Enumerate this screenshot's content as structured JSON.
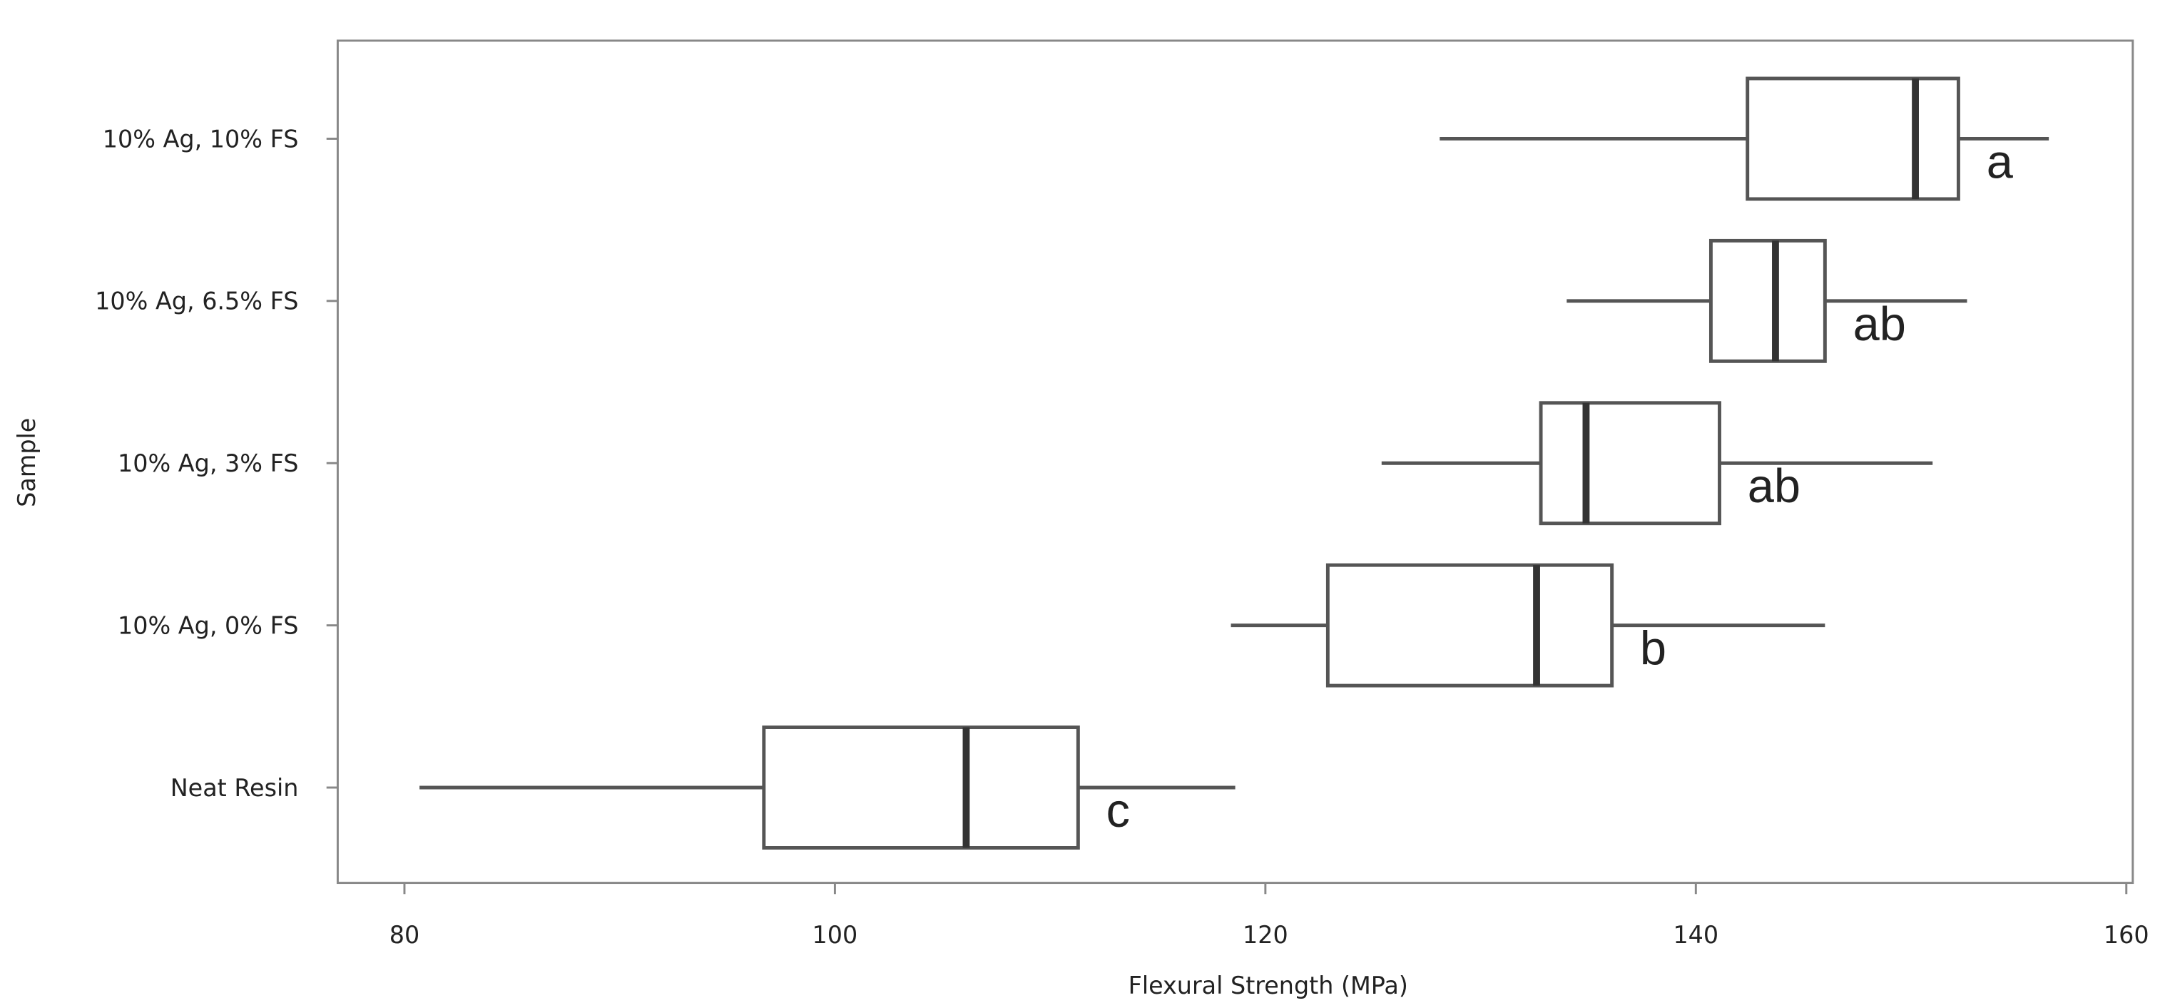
{
  "chart_data": {
    "type": "boxplot",
    "orientation": "horizontal",
    "x_label": "Flexural Strength (MPa)",
    "y_label": "Sample",
    "categories": [
      "10% Ag, 10% FS",
      "10% Ag, 6.5% FS",
      "10% Ag, 3% FS",
      "10% Ag, 0% FS",
      "Neat Resin"
    ],
    "boxes": [
      {
        "whislo": 128.1,
        "q1": 142.4,
        "median": 150.2,
        "q3": 152.2,
        "whishi": 156.4
      },
      {
        "whislo": 134.0,
        "q1": 140.7,
        "median": 143.7,
        "q3": 146.0,
        "whishi": 152.6
      },
      {
        "whislo": 125.4,
        "q1": 132.8,
        "median": 134.9,
        "q3": 141.1,
        "whishi": 151.0
      },
      {
        "whislo": 118.4,
        "q1": 122.9,
        "median": 132.6,
        "q3": 136.1,
        "whishi": 146.0
      },
      {
        "whislo": 80.7,
        "q1": 96.7,
        "median": 106.1,
        "q3": 111.3,
        "whishi": 118.6
      }
    ],
    "group_labels": [
      "a",
      "ab",
      "ab",
      "b",
      "c"
    ],
    "color": "#555555",
    "xlim": [
      76.9,
      160.3
    ],
    "xticks": [
      80,
      100,
      120,
      140,
      160
    ]
  }
}
